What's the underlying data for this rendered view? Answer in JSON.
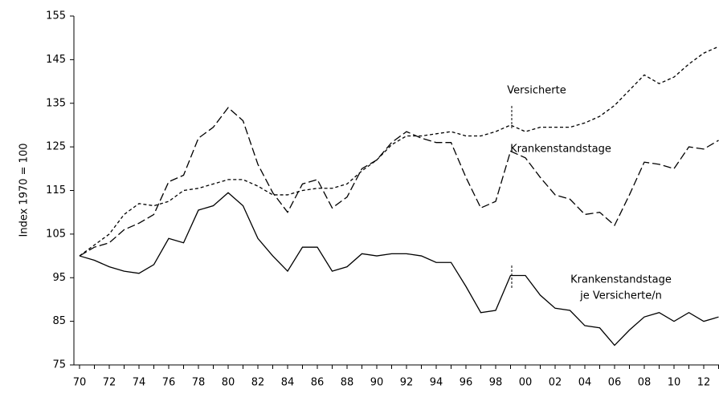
{
  "chart_data": {
    "type": "line",
    "y_label": "Index 1970 = 100",
    "categories": [
      "70",
      null,
      "72",
      null,
      "74",
      null,
      "76",
      null,
      "78",
      null,
      "80",
      null,
      "82",
      null,
      "84",
      null,
      "86",
      null,
      "88",
      null,
      "90",
      null,
      "92",
      null,
      "94",
      null,
      "96",
      null,
      "98",
      null,
      "00",
      null,
      "02",
      null,
      "04",
      null,
      "06",
      null,
      "08",
      null,
      "10",
      null,
      "12",
      null
    ],
    "ylim": [
      75,
      155
    ],
    "yticks": [
      75,
      85,
      95,
      105,
      115,
      125,
      135,
      145,
      155
    ],
    "series": [
      {
        "name": "Versicherte",
        "color": "#000000",
        "dash": "short",
        "values": [
          100,
          102.5,
          105,
          109.5,
          112,
          111.5,
          112.5,
          115,
          115.5,
          116.5,
          117.5,
          117.5,
          116,
          114,
          114,
          115,
          115.5,
          115.5,
          116.5,
          119.5,
          122,
          125.5,
          127.5,
          127.5,
          128,
          128.5,
          127.5,
          127.5,
          128.5,
          130,
          128.5,
          129.5,
          129.5,
          129.5,
          130.5,
          132,
          134.5,
          138,
          141.5,
          139.5,
          141,
          144,
          146.5,
          148
        ]
      },
      {
        "name": "Krankenstandstage",
        "color": "#000000",
        "dash": "long",
        "values": [
          100,
          102,
          103,
          106,
          107.5,
          109.5,
          117,
          118.5,
          127,
          129.5,
          134,
          131,
          121,
          114.5,
          110,
          116.5,
          117.5,
          111,
          113.5,
          120,
          122,
          126,
          128.5,
          127,
          126,
          126,
          118,
          111,
          112.5,
          124,
          122.5,
          118,
          114,
          113,
          109.5,
          110,
          107,
          114,
          121.5,
          121,
          120,
          125,
          124.5,
          126.5
        ]
      },
      {
        "name": "Krankenstandstage je Versicherte/n",
        "color": "#000000",
        "dash": "solid",
        "values": [
          100,
          99,
          97.5,
          96.5,
          96,
          98,
          104,
          103,
          110.5,
          111.5,
          114.5,
          111.5,
          104,
          100,
          96.5,
          102,
          102,
          96.5,
          97.5,
          100.5,
          100,
          100.5,
          100.5,
          100,
          98.5,
          98.5,
          93,
          87,
          87.5,
          95.5,
          95.5,
          91,
          88,
          87.5,
          84,
          83.5,
          79.5,
          83,
          86,
          87,
          85,
          87,
          85,
          86
        ]
      }
    ],
    "annotations": [
      [
        "Versicherte"
      ],
      [
        "Krankenstandstage"
      ],
      [
        "Krankenstandstage",
        "je Versicherte/n"
      ]
    ]
  }
}
